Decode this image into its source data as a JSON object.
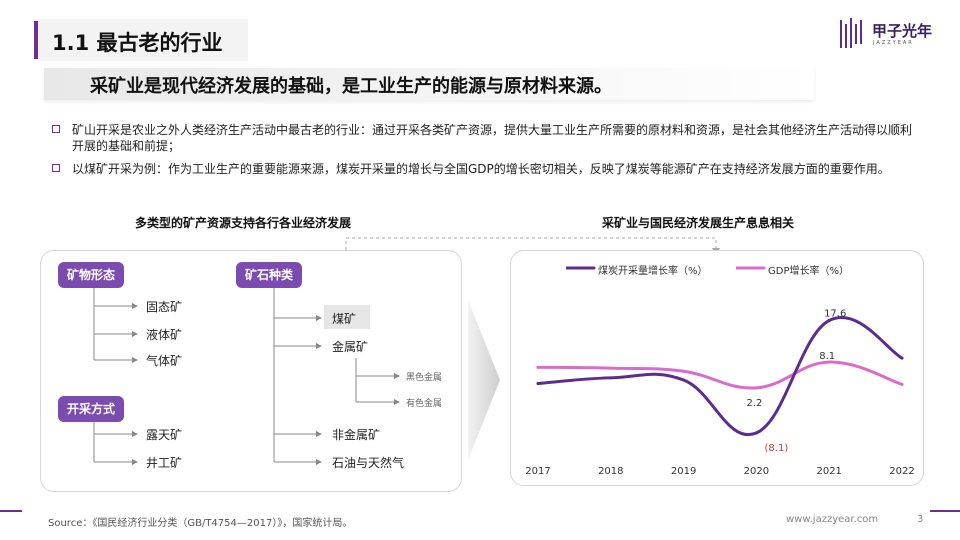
{
  "header": {
    "title": "1.1 最古老的行业",
    "logo_text": "甲子光年",
    "logo_sub": "JAZZYEAR"
  },
  "subtitle": "采矿业是现代经济发展的基础，是工业生产的能源与原材料来源。",
  "bullets": [
    "矿山开采是农业之外人类经济生产活动中最古老的行业：通过开采各类矿产资源，提供大量工业生产所需要的原材料和资源，是社会其他经济生产活动得以顺利开展的基础和前提；",
    "以煤矿开采为例：作为工业生产的重要能源来源，煤炭开采量的增长与全国GDP的增长密切相关，反映了煤炭等能源矿产在支持经济发展方面的重要作用。"
  ],
  "left_section": {
    "title": "多类型的矿产资源支持各行各业经济发展",
    "groups": {
      "form": {
        "label": "矿物形态",
        "items": [
          "固态矿",
          "液体矿",
          "气体矿"
        ]
      },
      "mining": {
        "label": "开采方式",
        "items": [
          "露天矿",
          "井工矿"
        ]
      },
      "type": {
        "label": "矿石种类",
        "items": [
          "煤矿",
          "金属矿",
          "非金属矿",
          "石油与天然气"
        ],
        "metal_sub": [
          "黑色金属",
          "有色金属"
        ]
      }
    }
  },
  "right_section": {
    "title": "采矿业与国民经济发展生产息息相关"
  },
  "chart_data": {
    "type": "line",
    "title": "采矿业与国民经济发展生产息息相关",
    "x": [
      "2017",
      "2018",
      "2019",
      "2020",
      "2021",
      "2022"
    ],
    "series": [
      {
        "name": "煤炭开采量增长率（%）",
        "values": [
          3.2,
          4.5,
          4.0,
          -8.1,
          17.6,
          9.0
        ],
        "color": "#5b2d91"
      },
      {
        "name": "GDP增长率（%）",
        "values": [
          6.9,
          6.7,
          6.0,
          2.2,
          8.1,
          3.0
        ],
        "color": "#d96bcb"
      }
    ],
    "data_labels": [
      {
        "series": 0,
        "index": 3,
        "text": "(8.1)",
        "color": "#c0392b"
      },
      {
        "series": 0,
        "index": 4,
        "text": "17.6",
        "color": "#333333"
      },
      {
        "series": 1,
        "index": 3,
        "text": "2.2",
        "color": "#333333"
      },
      {
        "series": 1,
        "index": 4,
        "text": "8.1",
        "color": "#333333"
      }
    ],
    "ylim": [
      -12,
      20
    ],
    "legend": "top",
    "grid": false
  },
  "footer": {
    "source": "Source：《国民经济行业分类（GB/T4754—2017）》，国家统计局。",
    "website": "www.jazzyear.com",
    "page": "3"
  }
}
